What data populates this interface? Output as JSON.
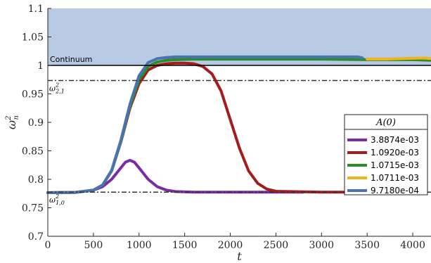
{
  "chart_data": {
    "type": "line",
    "xlabel": "t",
    "ylabel": "ω_n^2",
    "xlim": [
      0,
      4200
    ],
    "ylim": [
      0.7,
      1.1
    ],
    "x_ticks": [
      0,
      500,
      1000,
      1500,
      2000,
      2500,
      3000,
      3500,
      4000
    ],
    "y_ticks": [
      0.7,
      0.75,
      0.8,
      0.85,
      0.9,
      0.95,
      1,
      1.05,
      1.1
    ],
    "x_tick_labels": [
      "0",
      "500",
      "1000",
      "1500",
      "2000",
      "2500",
      "3000",
      "3500",
      "4000"
    ],
    "y_tick_labels": [
      "0.7",
      "0.75",
      "0.8",
      "0.85",
      "0.9",
      "0.95",
      "1",
      "1.05",
      "1.1"
    ],
    "grid": false,
    "continuum": {
      "label": "Continuum",
      "y": 1.0,
      "region_top": 1.1,
      "color": "#b8c9e3"
    },
    "reference_lines": [
      {
        "label_base": "ω",
        "label_sup": "2",
        "label_sub": "2,1",
        "y": 0.9735
      },
      {
        "label_base": "ω",
        "label_sup": "2",
        "label_sub": "1,0",
        "y": 0.7775
      }
    ],
    "legend": {
      "title": "A(0)",
      "position": "right"
    },
    "series": [
      {
        "name": "3.8874e-03",
        "color": "#7b2aa8",
        "x": [
          0,
          300,
          500,
          600,
          700,
          800,
          850,
          900,
          950,
          1000,
          1100,
          1200,
          1300,
          1400,
          1600,
          2000,
          2500,
          2800
        ],
        "y": [
          0.7765,
          0.777,
          0.781,
          0.787,
          0.8,
          0.82,
          0.83,
          0.8335,
          0.83,
          0.82,
          0.8,
          0.787,
          0.781,
          0.7785,
          0.7775,
          0.7775,
          0.7775,
          0.7775
        ]
      },
      {
        "name": "1.0920e-03",
        "color": "#a51c1c",
        "x": [
          0,
          300,
          500,
          600,
          700,
          800,
          900,
          1000,
          1100,
          1200,
          1300,
          1400,
          1500,
          1600,
          1700,
          1800,
          1900,
          2000,
          2100,
          2200,
          2300,
          2400,
          2500,
          3000,
          3500,
          4000,
          4030
        ],
        "y": [
          0.7765,
          0.777,
          0.781,
          0.79,
          0.815,
          0.865,
          0.925,
          0.968,
          0.992,
          1.0,
          1.003,
          1.004,
          1.004,
          1.003,
          0.998,
          0.985,
          0.955,
          0.905,
          0.855,
          0.815,
          0.793,
          0.783,
          0.779,
          0.7775,
          0.7775,
          0.7775,
          0.776
        ]
      },
      {
        "name": "1.0715e-03",
        "color": "#2a8c2a",
        "x": [
          0,
          300,
          500,
          600,
          700,
          800,
          900,
          1000,
          1100,
          1200,
          1300,
          1400,
          1600,
          2000,
          2500,
          3000,
          3500,
          4000,
          4200
        ],
        "y": [
          0.7765,
          0.777,
          0.781,
          0.79,
          0.815,
          0.866,
          0.928,
          0.975,
          0.998,
          1.006,
          1.009,
          1.01,
          1.011,
          1.011,
          1.011,
          1.011,
          1.01,
          1.01,
          1.009
        ]
      },
      {
        "name": "1.0711e-03",
        "color": "#f0b41c",
        "x": [
          3500,
          3700,
          3900,
          4100,
          4200
        ],
        "y": [
          1.011,
          1.011,
          1.012,
          1.013,
          1.012
        ]
      },
      {
        "name": "9.7180e-04",
        "color": "#4a73b2",
        "x": [
          0,
          300,
          500,
          600,
          700,
          800,
          900,
          1000,
          1100,
          1200,
          1300,
          1400,
          1600,
          2000,
          2500,
          3000,
          3400,
          3450
        ],
        "y": [
          0.7765,
          0.777,
          0.781,
          0.79,
          0.816,
          0.868,
          0.932,
          0.982,
          1.005,
          1.012,
          1.014,
          1.015,
          1.015,
          1.015,
          1.015,
          1.015,
          1.015,
          1.013
        ]
      }
    ]
  }
}
